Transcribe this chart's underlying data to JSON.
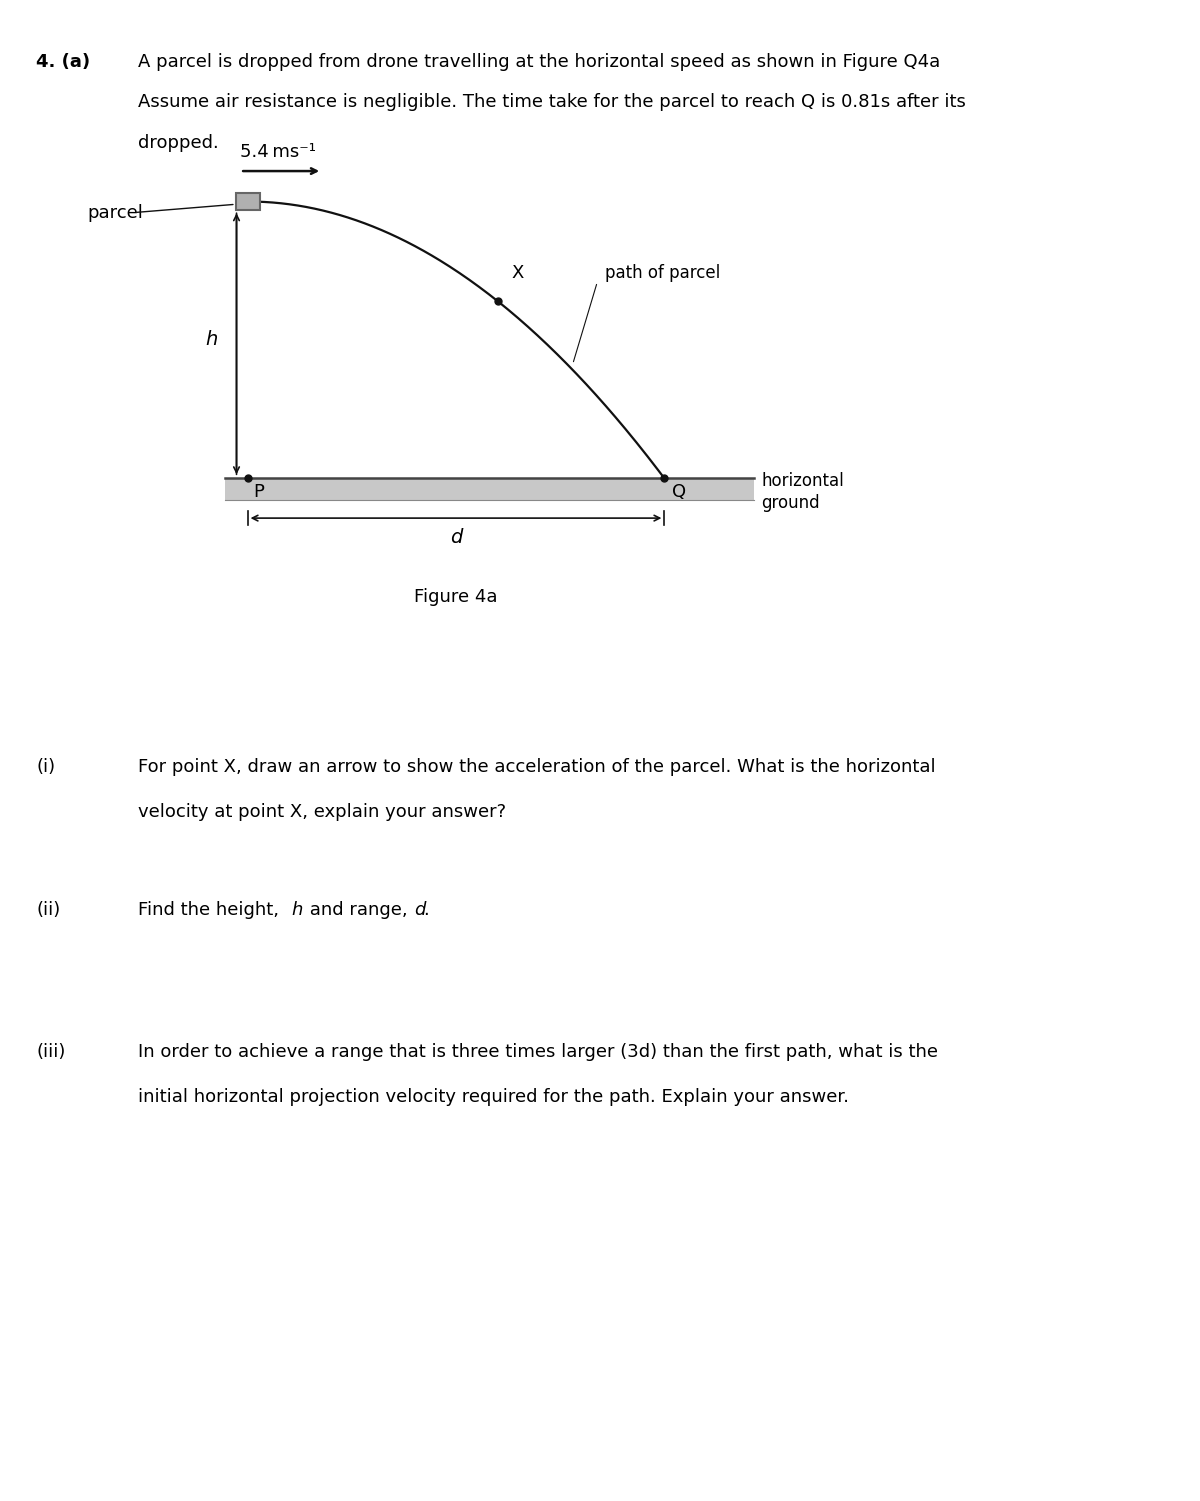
{
  "title_number": "4. (a)",
  "line1": "A parcel is dropped from drone travelling at the horizontal speed as shown in Figure Q4a",
  "line2": "Assume air resistance is negligible. The time take for the parcel to reach Q is 0.81s after its",
  "line3": "dropped.",
  "speed_label": "5.4 ms⁻¹",
  "parcel_label": "parcel",
  "h_label": "h",
  "P_label": "P",
  "Q_label": "Q",
  "X_label": "X",
  "d_label": "d",
  "path_label": "path of parcel",
  "ground_label1": "horizontal",
  "ground_label2": "ground",
  "figure_label": "Figure 4a",
  "subq_i_num": "(i)",
  "subq_i_line1": "For point X, draw an arrow to show the acceleration of the parcel. What is the horizontal",
  "subq_i_line2": "velocity at point X, explain your answer?",
  "subq_ii_num": "(ii)",
  "subq_ii_pre": "Find the height, ",
  "subq_ii_h": "h",
  "subq_ii_mid": " and range, ",
  "subq_ii_d": "d",
  "subq_ii_end": ".",
  "subq_iii_num": "(iii)",
  "subq_iii_line1": "In order to achieve a range that is three times larger (3d) than the first path, what is the",
  "subq_iii_line2": "initial horizontal projection velocity required for the path. Explain your answer.",
  "bg_color": "#ffffff",
  "text_color": "#000000",
  "ground_fill": "#c8c8c8",
  "ground_edge": "#999999",
  "parcel_fill": "#b0b0b0",
  "parcel_edge": "#666666",
  "curve_color": "#111111",
  "arrow_color": "#111111",
  "fontsize_main": 13,
  "fontsize_label": 12
}
